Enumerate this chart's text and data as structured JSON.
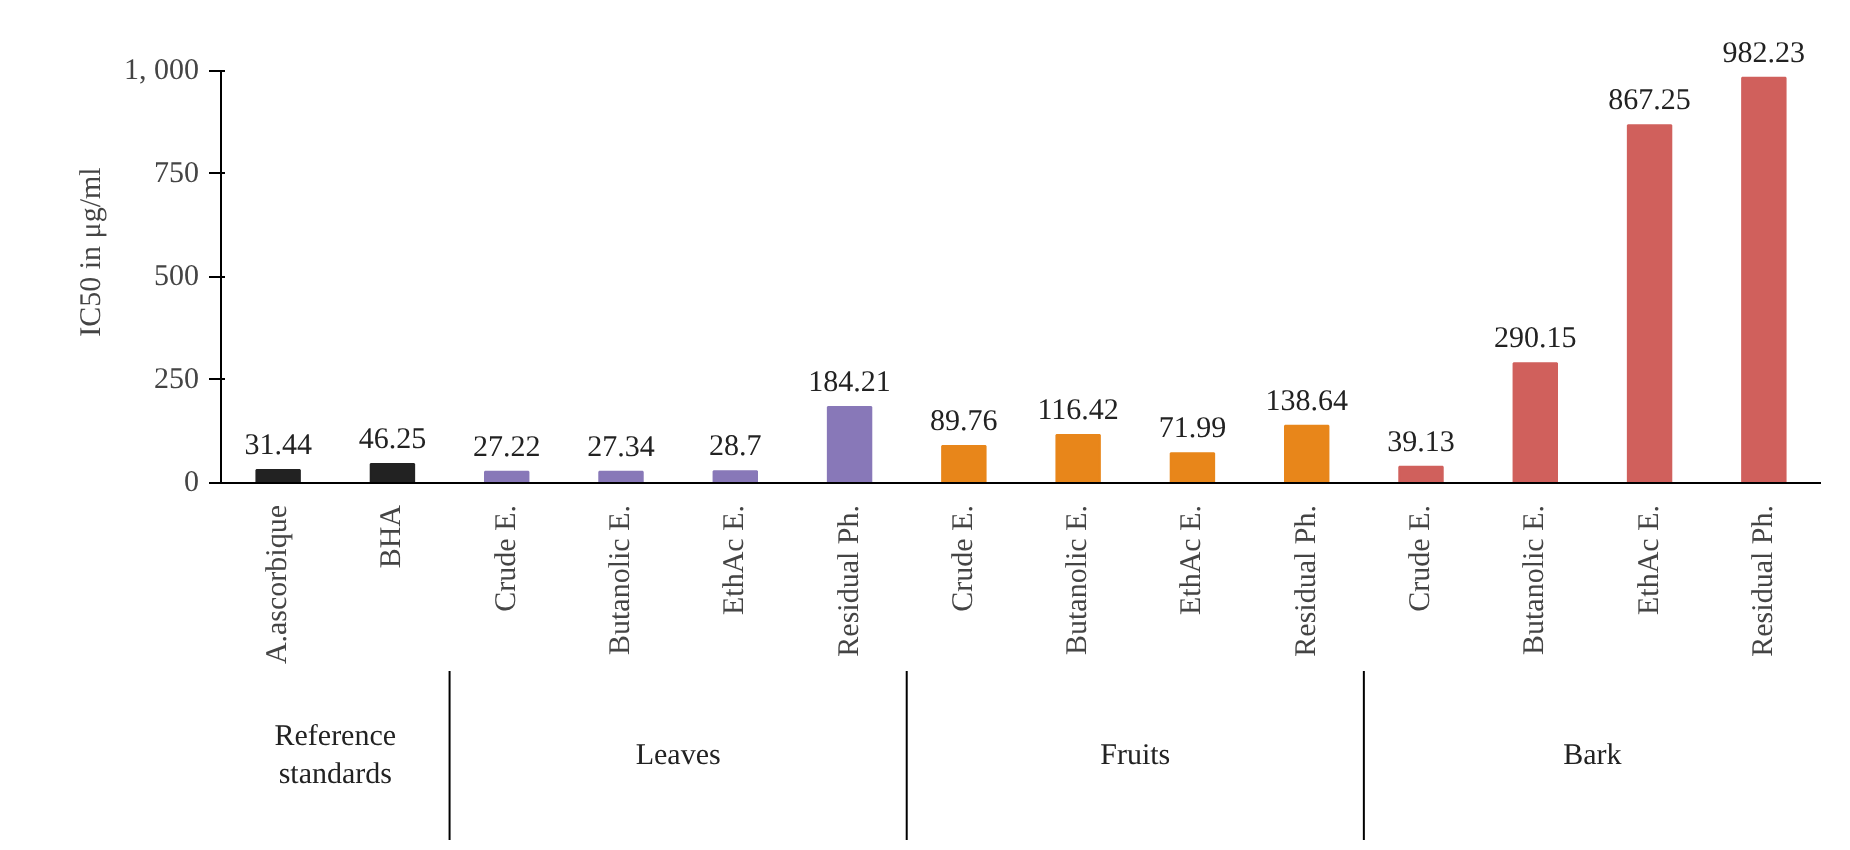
{
  "chart_data": {
    "type": "bar",
    "ylabel": "IC50 in μg/ml",
    "categories": [
      "A.ascorbique",
      "BHA",
      "Crude E.",
      "Butanolic E.",
      "EthAc E.",
      "Residual Ph.",
      "Crude E.",
      "Butanolic E.",
      "EthAc E.",
      "Residual Ph.",
      "Crude E.",
      "Butanolic E.",
      "EthAc E.",
      "Residual Ph."
    ],
    "values": [
      31.44,
      46.25,
      27.22,
      27.34,
      28.7,
      184.21,
      89.76,
      116.42,
      71.99,
      138.64,
      39.13,
      290.15,
      867.25,
      982.23
    ],
    "colors": [
      "#222222",
      "#222222",
      "#8878b8",
      "#8878b8",
      "#8878b8",
      "#8878b8",
      "#e8861a",
      "#e8861a",
      "#e8861a",
      "#e8861a",
      "#d0605c",
      "#d0605c",
      "#d0605c",
      "#d0605c"
    ],
    "ylim": [
      0,
      1000
    ],
    "yticks": [
      0,
      250,
      500,
      750,
      {
        "value": 1000,
        "label": "1, 000"
      }
    ],
    "data_labels": true,
    "grid": false,
    "annotations": [
      "Reference\nstandards",
      "Leaves",
      "Fruits",
      "Bark"
    ]
  }
}
